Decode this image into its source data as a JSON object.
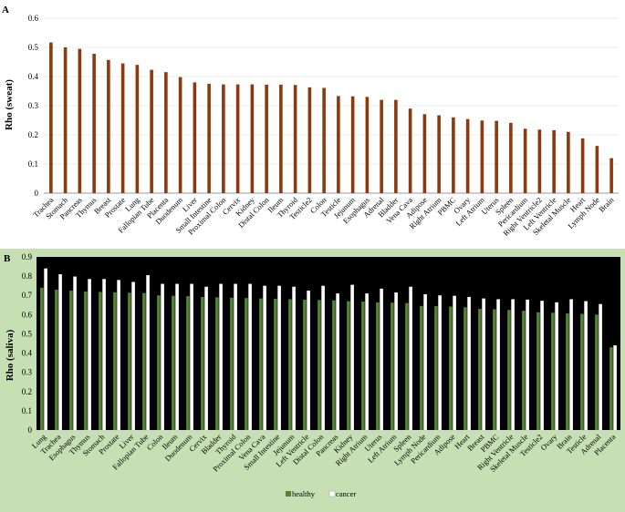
{
  "chart_data": [
    {
      "type": "bar",
      "panel_label": "A",
      "ylabel": "Rho (sweat)",
      "ylim": [
        0,
        0.6
      ],
      "yticks": [
        "0",
        "0.1",
        "0.2",
        "0.3",
        "0.4",
        "0.5",
        "0.6"
      ],
      "bar_color": "#8b3a0f",
      "categories": [
        "Trachea",
        "Stomach",
        "Pancreas",
        "Thymus",
        "Breast",
        "Prostate",
        "Lung",
        "Fallopian Tube",
        "Placenta",
        "Duodenum",
        "Liver",
        "Small Intestine",
        "Proximal Colon",
        "Cervix",
        "Kidney",
        "Distal Colon",
        "Ileum",
        "Thyroid",
        "Testicle2",
        "Colon",
        "Testicle",
        "Jejunum",
        "Esophagus",
        "Adrenal",
        "Bladder",
        "Vena Cava",
        "Adipose",
        "Right Atrium",
        "PBMC",
        "Ovary",
        "Left Atrium",
        "Uterus",
        "Spleen",
        "Pericardium",
        "Right Ventricle2",
        "Left Ventricle",
        "Skeletal Muscle",
        "Heart",
        "Lymph Node",
        "Brain"
      ],
      "values": [
        0.517,
        0.5,
        0.495,
        0.478,
        0.457,
        0.445,
        0.44,
        0.423,
        0.415,
        0.398,
        0.38,
        0.375,
        0.373,
        0.373,
        0.373,
        0.372,
        0.372,
        0.371,
        0.363,
        0.361,
        0.333,
        0.332,
        0.33,
        0.32,
        0.32,
        0.29,
        0.271,
        0.267,
        0.26,
        0.254,
        0.249,
        0.248,
        0.241,
        0.221,
        0.218,
        0.216,
        0.21,
        0.188,
        0.162,
        0.12
      ]
    },
    {
      "type": "bar",
      "panel_label": "B",
      "ylabel": "Rho (saliva)",
      "ylim": [
        0,
        0.9
      ],
      "yticks": [
        "0",
        "0.1",
        "0.2",
        "0.3",
        "0.4",
        "0.5",
        "0.6",
        "0.7",
        "0.8",
        "0.9"
      ],
      "legend_position": "bottom",
      "background_color": "#c6e0b4",
      "categories": [
        "Lung",
        "Trachea",
        "Esophagus",
        "Thymus",
        "Stomach",
        "Prostate",
        "Liver",
        "Fallopian Tube",
        "Colon",
        "Ileum",
        "Duodenum",
        "Cervix",
        "Bladder",
        "Thyroid",
        "Proximal Colon",
        "Vena Cava",
        "Small Intestine",
        "Jejunum",
        "Left Ventricle",
        "Distal Colon",
        "Pancreas",
        "Kidney",
        "Right Atrium",
        "Uterus",
        "Left Atrium",
        "Spleen",
        "Lymph Node",
        "Pericardium",
        "Adipose",
        "Heart",
        "Breast",
        "PBMC",
        "Right Ventricle",
        "Skeletal Muscle",
        "Testicle2",
        "Ovary",
        "Brain",
        "Testicle",
        "Adrenal",
        "Placenta"
      ],
      "series": [
        {
          "name": "healthy",
          "color": "#548235",
          "values": [
            0.74,
            0.73,
            0.725,
            0.72,
            0.718,
            0.716,
            0.714,
            0.712,
            0.7,
            0.698,
            0.696,
            0.692,
            0.69,
            0.688,
            0.686,
            0.684,
            0.682,
            0.68,
            0.678,
            0.676,
            0.674,
            0.67,
            0.668,
            0.664,
            0.662,
            0.66,
            0.645,
            0.644,
            0.642,
            0.638,
            0.63,
            0.628,
            0.624,
            0.62,
            0.612,
            0.61,
            0.606,
            0.604,
            0.6,
            0.43
          ]
        },
        {
          "name": "cancer",
          "color": "#ffffff",
          "values": [
            0.84,
            0.81,
            0.798,
            0.785,
            0.785,
            0.78,
            0.77,
            0.805,
            0.76,
            0.76,
            0.76,
            0.745,
            0.76,
            0.76,
            0.76,
            0.75,
            0.75,
            0.745,
            0.725,
            0.75,
            0.71,
            0.755,
            0.71,
            0.735,
            0.715,
            0.745,
            0.706,
            0.7,
            0.698,
            0.692,
            0.684,
            0.68,
            0.68,
            0.678,
            0.672,
            0.664,
            0.68,
            0.67,
            0.655,
            0.44
          ]
        }
      ]
    }
  ]
}
